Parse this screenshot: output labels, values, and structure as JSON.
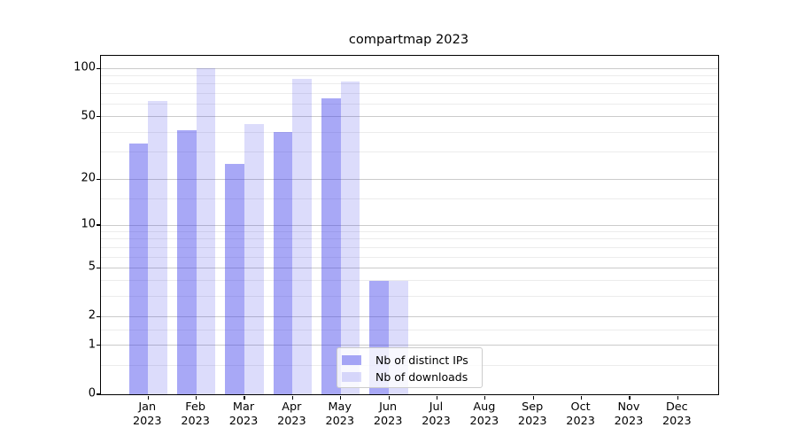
{
  "figure": {
    "background": "#ffffff",
    "spine_color": "#000000",
    "text_color": "#000000"
  },
  "chart_data": {
    "type": "bar",
    "title": "compartmap 2023",
    "categories": [
      "Jan\n2023",
      "Feb\n2023",
      "Mar\n2023",
      "Apr\n2023",
      "May\n2023",
      "Jun\n2023",
      "Jul\n2023",
      "Aug\n2023",
      "Sep\n2023",
      "Oct\n2023",
      "Nov\n2023",
      "Dec\n2023"
    ],
    "series": [
      {
        "name": "Nb of distinct IPs",
        "color": "rgba(62,62,235,0.45)",
        "values": [
          34,
          41,
          25,
          40,
          65,
          4,
          0,
          0,
          0,
          0,
          0,
          0
        ]
      },
      {
        "name": "Nb of downloads",
        "color": "rgba(40,40,230,0.16)",
        "values": [
          63,
          100,
          45,
          86,
          83,
          4,
          0,
          0,
          0,
          0,
          0,
          0
        ]
      }
    ],
    "bar_width": 0.4,
    "yscale": "log1p",
    "ylim": [
      0,
      120
    ],
    "xlim": [
      -0.98,
      11.84
    ],
    "yticks": [
      0,
      1,
      2,
      5,
      10,
      20,
      50,
      100
    ],
    "yticks_minor": [
      0.5,
      1.5,
      3,
      4,
      6,
      7,
      8,
      9,
      15,
      30,
      40,
      60,
      70,
      80,
      90
    ],
    "xlabel": "",
    "ylabel": "",
    "grid": {
      "major_color": "#cbcbcb",
      "minor_color": "#ececec",
      "visible": true
    },
    "legend": {
      "location": "lower center"
    }
  }
}
